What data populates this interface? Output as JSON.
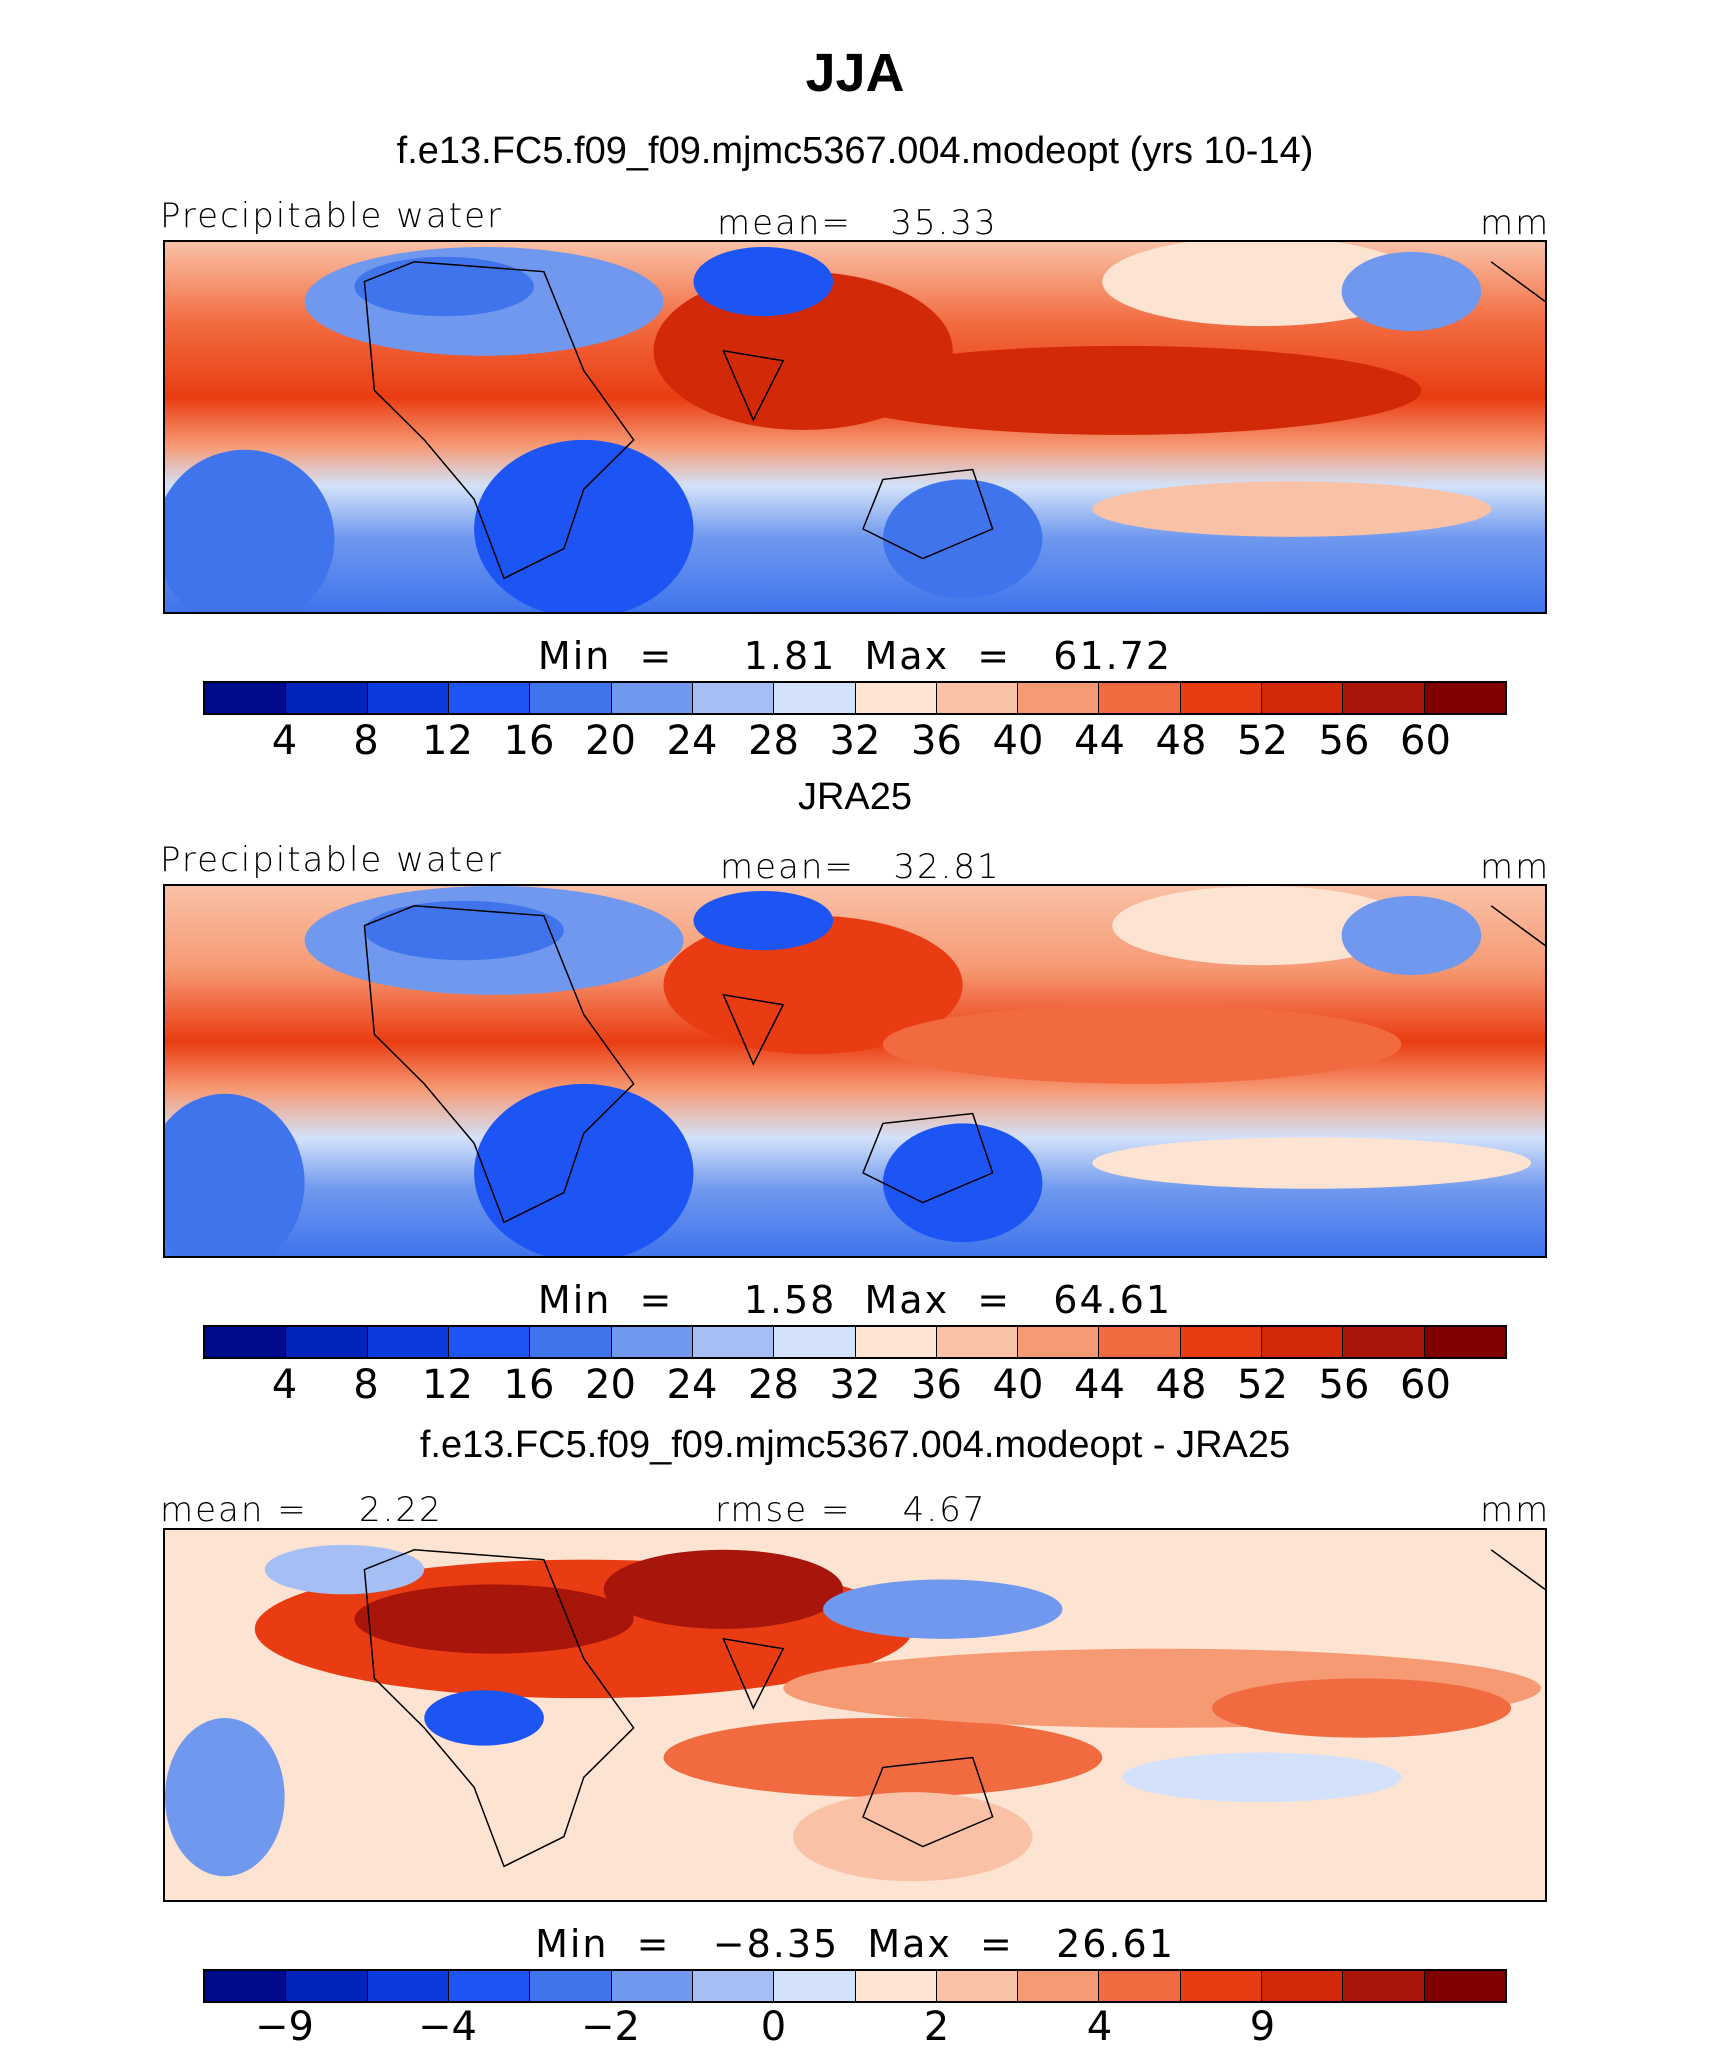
{
  "season": "JJA",
  "colors": [
    "#000b8c",
    "#0324ba",
    "#0b3ade",
    "#1d55f4",
    "#3f74ec",
    "#6f98ee",
    "#a5bff4",
    "#d3e2fa",
    "#fde3d2",
    "#f9c1a6",
    "#f69a74",
    "#f26b40",
    "#ea3c12",
    "#d22a08",
    "#a8150b",
    "#800000"
  ],
  "panels": [
    {
      "title": "f.e13.FC5.f09_f09.mjmc5367.004.modeopt (yrs 10-14)",
      "left_label": "Precipitable water",
      "center_label": "mean=   35.33",
      "right_label": "mm",
      "minmax": "Min  =     1.81  Max  =   61.72",
      "colorbar_ticks": [
        "4",
        "8",
        "12",
        "16",
        "20",
        "24",
        "28",
        "32",
        "36",
        "40",
        "44",
        "48",
        "52",
        "56",
        "60"
      ]
    },
    {
      "title": "JRA25",
      "left_label": "Precipitable water",
      "center_label": "mean=   32.81",
      "right_label": "mm",
      "minmax": "Min  =     1.58  Max  =   64.61",
      "colorbar_ticks": [
        "4",
        "8",
        "12",
        "16",
        "20",
        "24",
        "28",
        "32",
        "36",
        "40",
        "44",
        "48",
        "52",
        "56",
        "60"
      ]
    },
    {
      "title": "f.e13.FC5.f09_f09.mjmc5367.004.modeopt - JRA25",
      "left_label": "mean =    2.22",
      "center_label": "rmse =    4.67",
      "right_label": "mm",
      "minmax": "Min  =   −8.35  Max  =   26.61",
      "colorbar_ticks": [
        "−9",
        "",
        "−4",
        "",
        "−2",
        "",
        "0",
        "",
        "2",
        "",
        "4",
        "",
        "9",
        "",
        ""
      ]
    }
  ]
}
